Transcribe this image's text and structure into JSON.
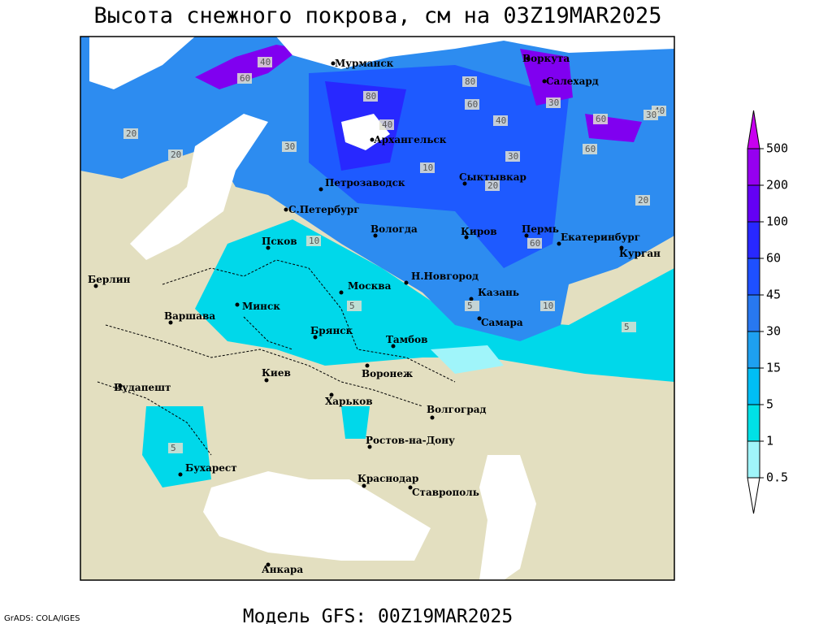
{
  "title": "Высота снежного покрова, см на 03Z19MAR2025",
  "footer": "Модель GFS: 00Z19MAR2025",
  "credit": "GrADS: COLA/IGES",
  "legend": {
    "levels": [
      0.5,
      1,
      5,
      15,
      30,
      45,
      60,
      100,
      200,
      500
    ],
    "colors": [
      "#ffffff",
      "#a0f5fa",
      "#00e1e6",
      "#00bef5",
      "#1ea0f0",
      "#2878f0",
      "#1e50ff",
      "#2828ff",
      "#6400f5",
      "#9600f0",
      "#c800f0"
    ]
  },
  "cities": [
    "Мурманск",
    "Воркута",
    "Салехард",
    "Архангельск",
    "Петрозаводск",
    "Сыктывкар",
    "С.Петербург",
    "Вологда",
    "Киров",
    "Пермь",
    "Екатеринбург",
    "Курган",
    "Псков",
    "Берлин",
    "Москва",
    "Н.Новгород",
    "Казань",
    "Минск",
    "Варшава",
    "Самара",
    "Брянск",
    "Тамбов",
    "Киев",
    "Воронеж",
    "Будапешт",
    "Харьков",
    "Волгоград",
    "Ростов-на-Дону",
    "Бухарест",
    "Краснодар",
    "Ставрополь",
    "Анкара"
  ],
  "contour_labels": [
    60,
    40,
    80,
    30,
    20,
    10,
    5,
    60,
    40,
    30,
    20,
    80,
    60,
    40,
    60,
    30,
    20,
    10,
    5,
    5,
    20,
    40,
    30,
    60,
    10,
    5
  ]
}
